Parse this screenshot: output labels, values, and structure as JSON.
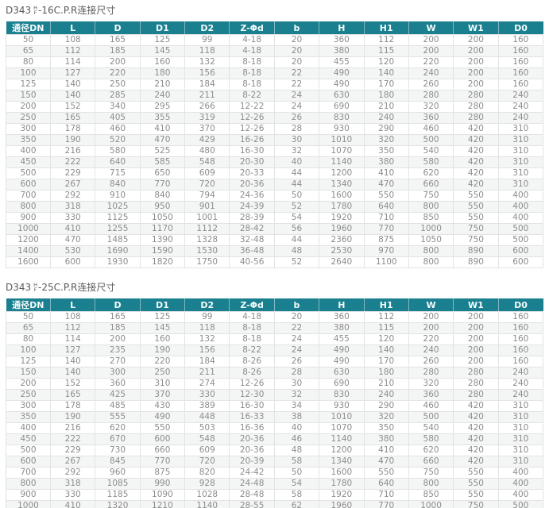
{
  "colors": {
    "header_bg": "#1a7f8e",
    "header_text": "#f2fafb",
    "body_text": "#8c8c8c",
    "row_stripe": "#f4f5f5",
    "border": "#e2e3e3",
    "title_text": "#5a5a5a"
  },
  "tables": [
    {
      "title_prefix": "D343",
      "title_stack_top": "H",
      "title_stack_bottom": "F",
      "title_suffix": "-16C.P.R连接尺寸",
      "columns": [
        "通径DN",
        "L",
        "D",
        "D1",
        "D2",
        "Z-Φd",
        "b",
        "H",
        "H1",
        "W",
        "W1",
        "D0"
      ],
      "rows": [
        [
          50,
          108,
          165,
          125,
          99,
          "4-18",
          20,
          360,
          112,
          200,
          200,
          160
        ],
        [
          65,
          112,
          185,
          145,
          118,
          "4-18",
          20,
          380,
          115,
          200,
          200,
          160
        ],
        [
          80,
          114,
          200,
          160,
          132,
          "8-18",
          20,
          455,
          120,
          220,
          200,
          160
        ],
        [
          100,
          127,
          220,
          180,
          156,
          "8-18",
          22,
          490,
          140,
          240,
          200,
          160
        ],
        [
          125,
          140,
          250,
          210,
          184,
          "8-18",
          22,
          490,
          170,
          260,
          200,
          160
        ],
        [
          150,
          140,
          285,
          240,
          211,
          "8-22",
          24,
          630,
          180,
          280,
          280,
          240
        ],
        [
          200,
          152,
          340,
          295,
          266,
          "12-22",
          24,
          690,
          210,
          320,
          280,
          240
        ],
        [
          250,
          165,
          405,
          355,
          319,
          "12-26",
          26,
          830,
          240,
          360,
          280,
          240
        ],
        [
          300,
          178,
          460,
          410,
          370,
          "12-26",
          28,
          930,
          290,
          460,
          420,
          310
        ],
        [
          350,
          190,
          520,
          470,
          429,
          "16-26",
          30,
          1010,
          320,
          500,
          420,
          310
        ],
        [
          400,
          216,
          580,
          525,
          480,
          "16-30",
          32,
          1070,
          350,
          540,
          420,
          310
        ],
        [
          450,
          222,
          640,
          585,
          548,
          "20-30",
          40,
          1140,
          380,
          580,
          420,
          310
        ],
        [
          500,
          229,
          715,
          650,
          609,
          "20-33",
          44,
          1200,
          410,
          620,
          420,
          310
        ],
        [
          600,
          267,
          840,
          770,
          720,
          "20-36",
          44,
          1340,
          470,
          660,
          420,
          310
        ],
        [
          700,
          292,
          910,
          840,
          794,
          "24-36",
          50,
          1600,
          550,
          750,
          550,
          400
        ],
        [
          800,
          318,
          1025,
          950,
          901,
          "24-39",
          52,
          1780,
          640,
          800,
          550,
          400
        ],
        [
          900,
          330,
          1125,
          1050,
          1001,
          "28-39",
          54,
          1920,
          710,
          850,
          550,
          400
        ],
        [
          1000,
          410,
          1255,
          1170,
          1112,
          "28-42",
          56,
          1960,
          770,
          1000,
          750,
          500
        ],
        [
          1200,
          470,
          1485,
          1390,
          1328,
          "32-48",
          44,
          2360,
          875,
          1050,
          750,
          500
        ],
        [
          1400,
          530,
          1690,
          1590,
          1530,
          "36-48",
          48,
          2530,
          970,
          800,
          890,
          600
        ],
        [
          1600,
          600,
          1930,
          1820,
          1750,
          "40-56",
          52,
          2640,
          1100,
          800,
          890,
          600
        ]
      ]
    },
    {
      "title_prefix": "D343",
      "title_stack_top": "H",
      "title_stack_bottom": "F",
      "title_suffix": "-25C.P.R连接尺寸",
      "columns": [
        "通径DN",
        "L",
        "D",
        "D1",
        "D2",
        "Z-Φd",
        "b",
        "H",
        "H1",
        "W",
        "W1",
        "D0"
      ],
      "rows": [
        [
          50,
          108,
          165,
          125,
          99,
          "4-18",
          20,
          360,
          112,
          200,
          200,
          160
        ],
        [
          65,
          112,
          185,
          145,
          118,
          "8-18",
          22,
          380,
          115,
          200,
          200,
          160
        ],
        [
          80,
          114,
          200,
          160,
          132,
          "8-18",
          24,
          455,
          120,
          220,
          200,
          160
        ],
        [
          100,
          127,
          235,
          190,
          156,
          "8-22",
          24,
          490,
          140,
          240,
          200,
          160
        ],
        [
          125,
          140,
          270,
          220,
          184,
          "8-26",
          26,
          490,
          170,
          260,
          200,
          160
        ],
        [
          150,
          140,
          300,
          250,
          211,
          "8-26",
          28,
          630,
          180,
          280,
          280,
          240
        ],
        [
          200,
          152,
          360,
          310,
          274,
          "12-26",
          30,
          690,
          210,
          320,
          280,
          240
        ],
        [
          250,
          165,
          425,
          370,
          330,
          "12-30",
          32,
          830,
          240,
          360,
          280,
          240
        ],
        [
          300,
          178,
          485,
          430,
          389,
          "16-30",
          34,
          930,
          290,
          460,
          420,
          310
        ],
        [
          350,
          190,
          555,
          490,
          448,
          "16-33",
          38,
          1010,
          320,
          500,
          420,
          310
        ],
        [
          400,
          216,
          620,
          550,
          503,
          "16-36",
          40,
          1070,
          350,
          540,
          420,
          310
        ],
        [
          450,
          222,
          670,
          600,
          548,
          "20-36",
          46,
          1140,
          380,
          580,
          420,
          310
        ],
        [
          500,
          229,
          730,
          660,
          609,
          "20-36",
          48,
          1200,
          410,
          620,
          420,
          310
        ],
        [
          600,
          267,
          845,
          770,
          720,
          "20-39",
          58,
          1340,
          470,
          660,
          420,
          310
        ],
        [
          700,
          292,
          960,
          875,
          820,
          "24-42",
          50,
          1600,
          550,
          750,
          550,
          400
        ],
        [
          800,
          318,
          1085,
          990,
          928,
          "24-48",
          54,
          1780,
          640,
          800,
          550,
          400
        ],
        [
          900,
          330,
          1185,
          1090,
          1028,
          "28-48",
          58,
          1920,
          710,
          850,
          550,
          400
        ],
        [
          1000,
          410,
          1320,
          1210,
          1140,
          "28-55",
          62,
          1960,
          770,
          1000,
          750,
          500
        ]
      ]
    }
  ]
}
